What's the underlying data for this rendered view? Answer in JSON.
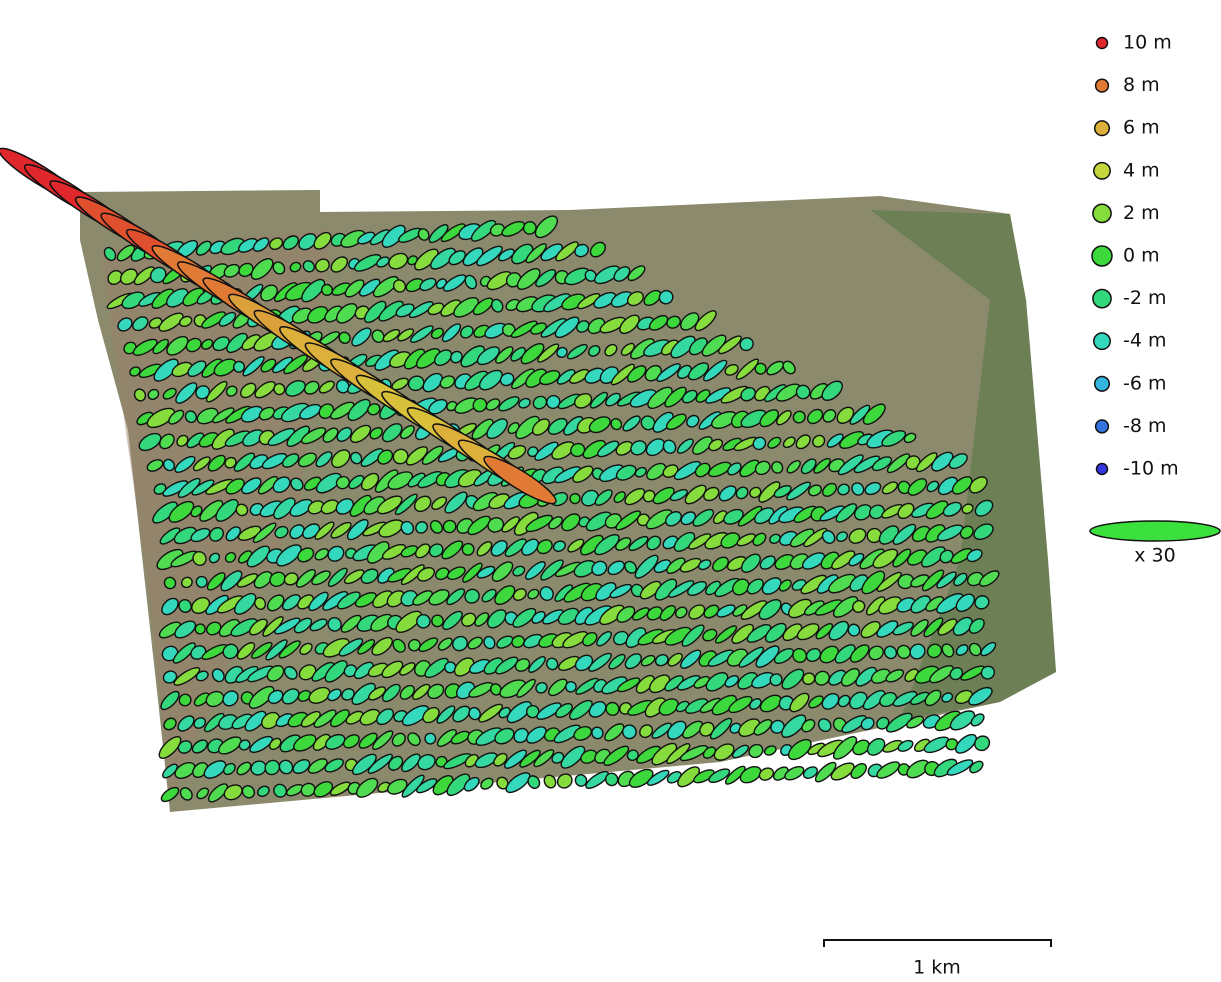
{
  "legend": {
    "entries": [
      {
        "label": "10 m",
        "color": "#e0282c"
      },
      {
        "label": "8 m",
        "color": "#e07a34"
      },
      {
        "label": "6 m",
        "color": "#dcb03a"
      },
      {
        "label": "4 m",
        "color": "#c4d63a"
      },
      {
        "label": "2 m",
        "color": "#86dc3c"
      },
      {
        "label": "0 m",
        "color": "#3cd83c"
      },
      {
        "label": "-2 m",
        "color": "#34d87c"
      },
      {
        "label": "-4 m",
        "color": "#34d8bc"
      },
      {
        "label": "-6 m",
        "color": "#34b4e0"
      },
      {
        "label": "-8 m",
        "color": "#3474e0"
      },
      {
        "label": "-10 m",
        "color": "#3434e0"
      }
    ],
    "scale_color": "#3ce03c",
    "scale_label": "x 30"
  },
  "scale_bar": {
    "label": "1 km"
  }
}
